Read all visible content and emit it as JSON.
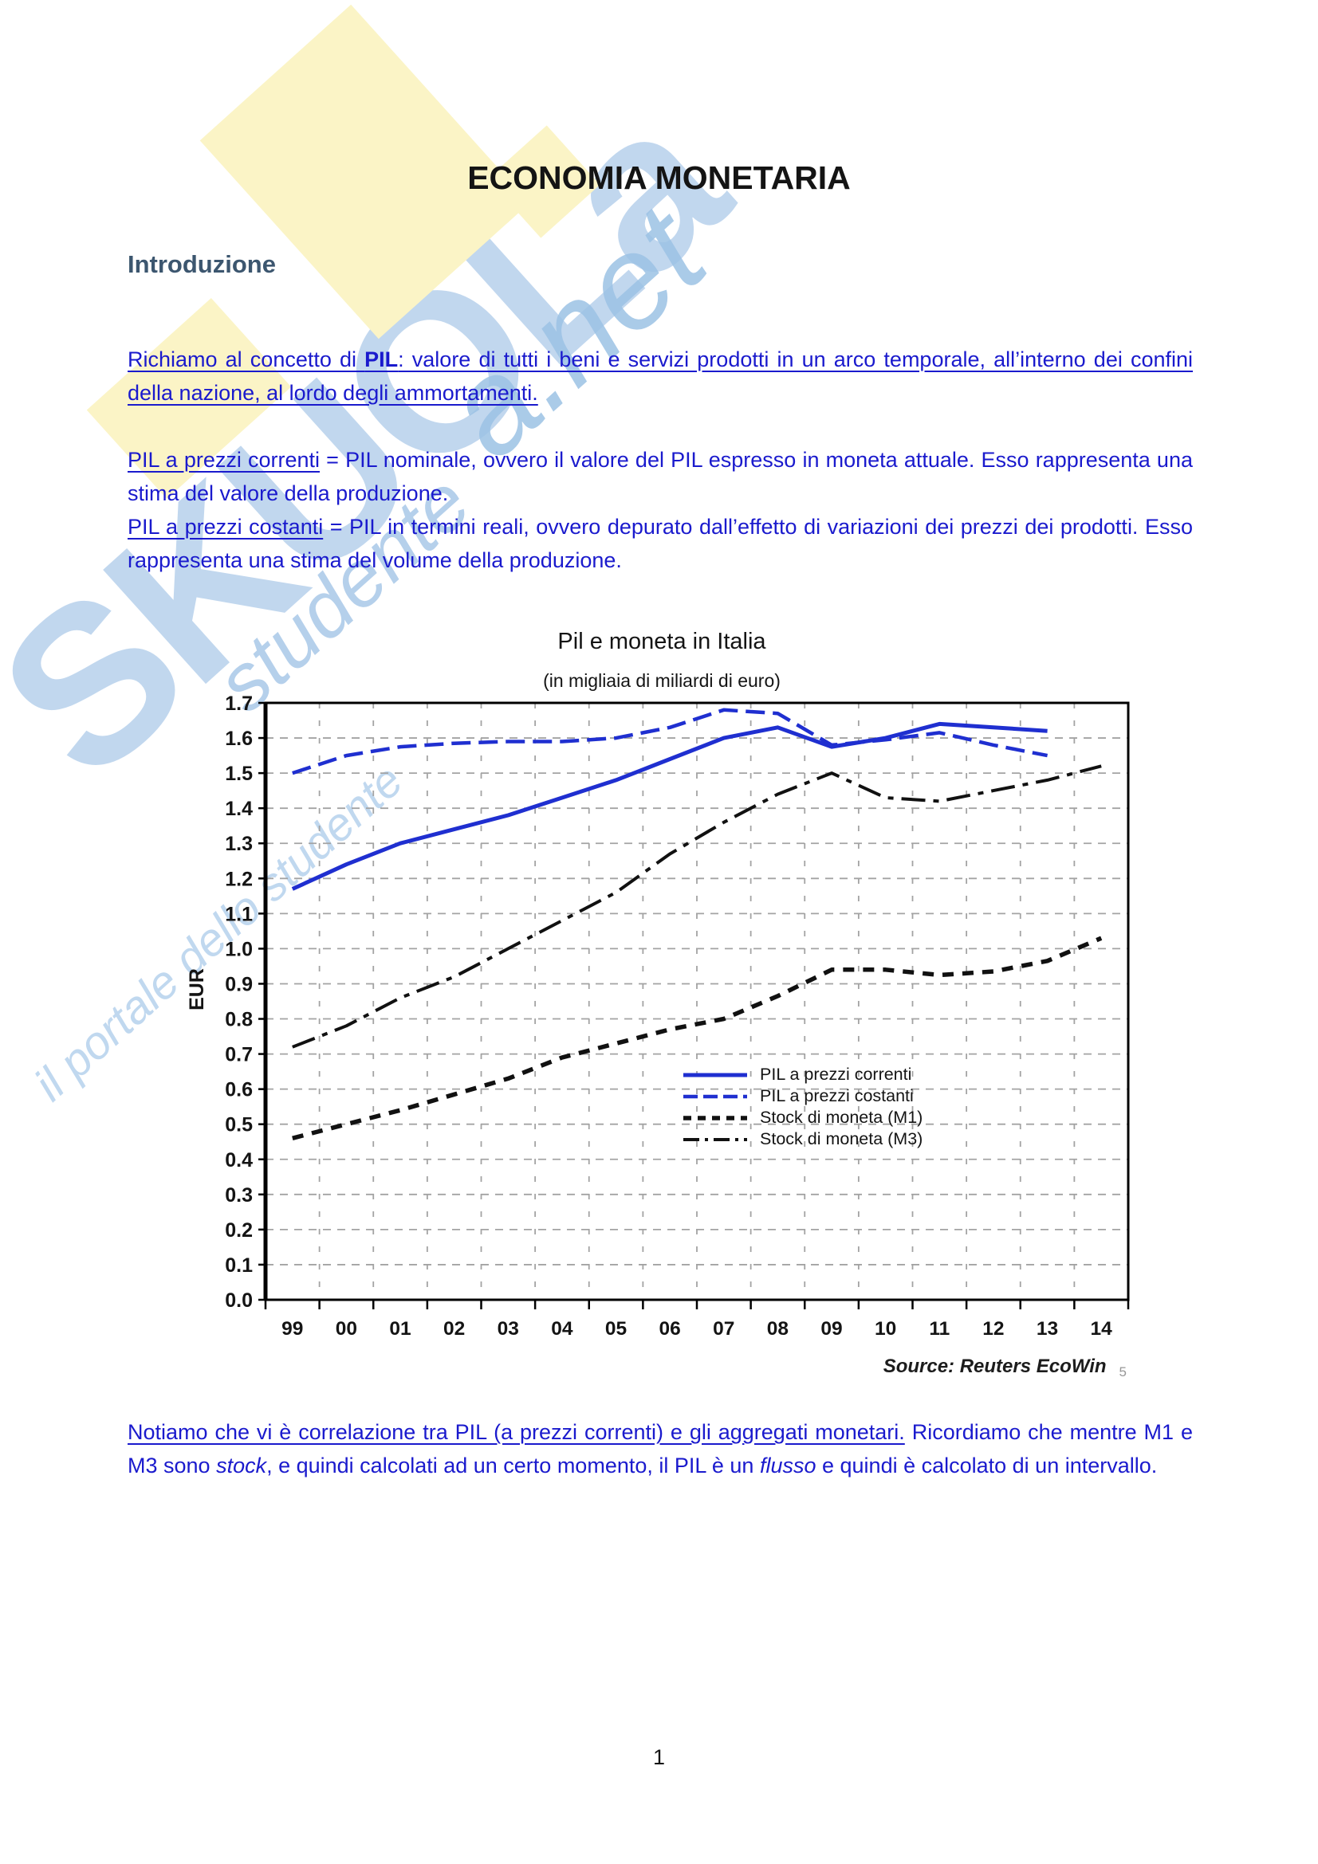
{
  "page": {
    "title": "ECONOMIA MONETARIA",
    "heading": "Introduzione",
    "page_number": "1"
  },
  "watermark": {
    "big_text": "SKUOLa",
    "script_top": "a.net",
    "script_mid": "studente",
    "script_bottom": "il portale dello studente"
  },
  "paragraphs": {
    "p1": {
      "pre": "Richiamo al concetto di ",
      "bold": "PIL",
      "rest": ": valore di tutti i beni e servizi prodotti in un arco temporale, all’interno dei confini della nazione, al lordo degli ammortamenti."
    },
    "p2a": {
      "underlined": "PIL a prezzi correnti",
      "rest": " = PIL nominale, ovvero il valore del PIL espresso in moneta attuale. Esso rappresenta una stima del valore della produzione."
    },
    "p2b": {
      "underlined": "PIL a prezzi costanti",
      "rest": " = PIL in termini reali, ovvero depurato dall’effetto di variazioni dei prezzi dei prodotti. Esso rappresenta una stima del volume della produzione."
    },
    "p3": {
      "underlined": "Notiamo che vi è correlazione tra PIL (a prezzi correnti) e gli aggregati monetari.",
      "mid1": " Ricordiamo che mentre M1 e M3 sono ",
      "italic1": "stock",
      "mid2": ", e quindi calcolati ad un certo momento, il PIL è un ",
      "italic2": "flusso",
      "end": " e quindi è calcolato di un intervallo."
    }
  },
  "chart_data": {
    "type": "line",
    "title": "Pil e moneta in Italia",
    "subtitle": "(in migliaia di miliardi di euro)",
    "ylabel": "EUR",
    "source": "Source: Reuters EcoWin",
    "source_page_ref": "5",
    "x_labels": [
      "99",
      "00",
      "01",
      "02",
      "03",
      "04",
      "05",
      "06",
      "07",
      "08",
      "09",
      "10",
      "11",
      "12",
      "13",
      "14"
    ],
    "ylim": [
      0.0,
      1.7
    ],
    "ytick_step": 0.1,
    "grid": true,
    "legend_position": "inside-right-lower",
    "series": [
      {
        "name": "PIL a prezzi correnti",
        "color": "#1f2fd0",
        "style": "solid",
        "values": [
          1.17,
          1.24,
          1.3,
          1.34,
          1.38,
          1.43,
          1.48,
          1.54,
          1.6,
          1.63,
          1.575,
          1.6,
          1.64,
          1.63,
          1.62,
          null
        ]
      },
      {
        "name": "PIL a prezzi costanti",
        "color": "#1f2fd0",
        "style": "dashed",
        "values": [
          1.5,
          1.55,
          1.575,
          1.585,
          1.59,
          1.59,
          1.6,
          1.63,
          1.68,
          1.67,
          1.58,
          1.595,
          1.615,
          1.58,
          1.55,
          null
        ]
      },
      {
        "name": "Stock di moneta (M1)",
        "color": "#111111",
        "style": "dashed-short",
        "values": [
          0.46,
          0.5,
          0.54,
          0.585,
          0.63,
          0.69,
          0.73,
          0.77,
          0.8,
          0.865,
          0.94,
          0.94,
          0.925,
          0.935,
          0.965,
          1.03
        ]
      },
      {
        "name": "Stock di moneta (M3)",
        "color": "#111111",
        "style": "dashdot",
        "values": [
          0.72,
          0.78,
          0.86,
          0.92,
          1.0,
          1.08,
          1.16,
          1.27,
          1.36,
          1.44,
          1.5,
          1.43,
          1.42,
          1.45,
          1.48,
          1.52
        ]
      }
    ]
  }
}
